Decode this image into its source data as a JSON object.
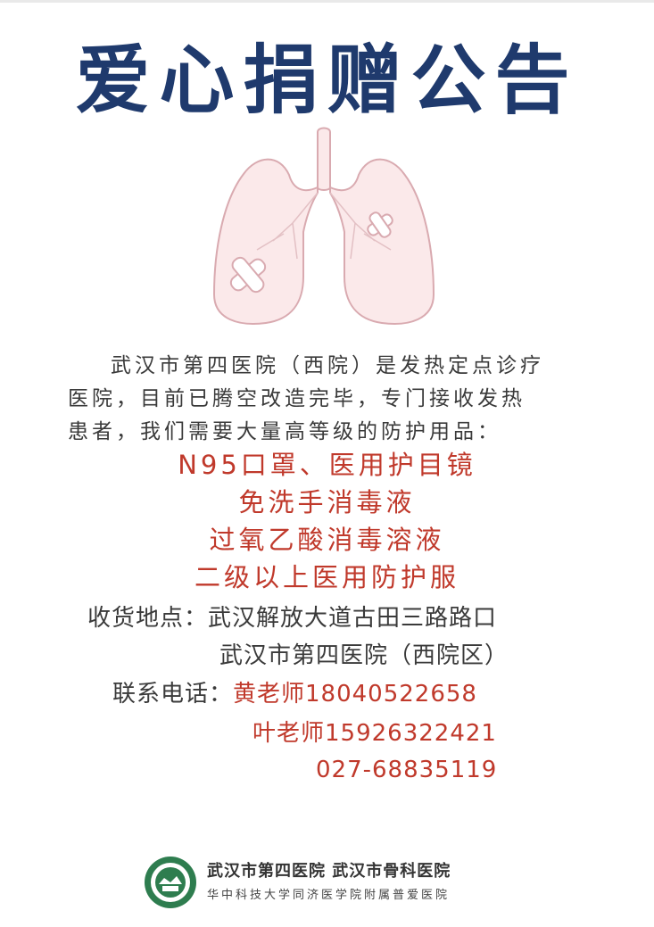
{
  "title": "爱心捐赠公告",
  "intro": [
    "武汉市第四医院（西院）是发热定点诊疗",
    "医院，目前已腾空改造完毕，专门接收发热",
    "患者，我们需要大量高等级的防护用品："
  ],
  "supplies": [
    "N95口罩、医用护目镜",
    "免洗手消毒液",
    "过氧乙酸消毒溶液",
    "二级以上医用防护服"
  ],
  "delivery": {
    "label": "收货地点：",
    "line1": "武汉解放大道古田三路路口",
    "line2": "武汉市第四医院（西院区）"
  },
  "contact": {
    "label": "联系电话：",
    "phone1": "黄老师18040522658",
    "phone2": "叶老师15926322421",
    "phone3": "027-68835119"
  },
  "footer": {
    "hospitals": "武汉市第四医院 武汉市骨科医院",
    "affiliation": "华中科技大学同济医学院附属普爱医院"
  },
  "colors": {
    "title": "#1f3a6d",
    "accent_red": "#c0392b",
    "logo_green": "#2e7d4f"
  }
}
